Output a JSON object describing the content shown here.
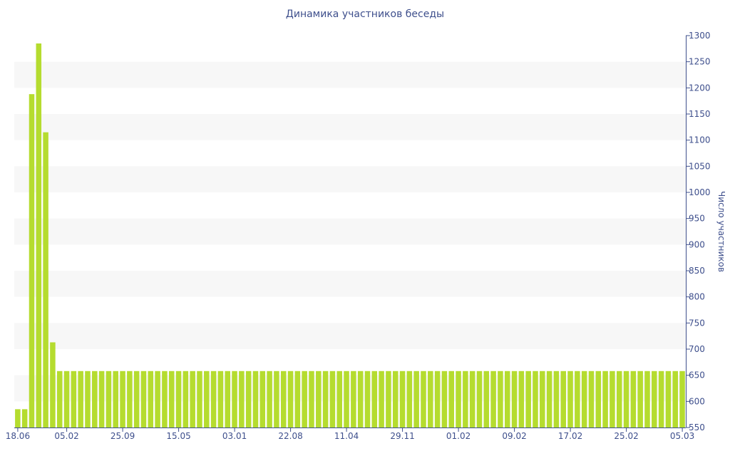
{
  "chart_data": {
    "type": "bar",
    "title": "Динамика участников беседы",
    "xlabel": "",
    "ylabel": "Число участников",
    "ylim": [
      550,
      1300
    ],
    "y_ticks": [
      550,
      600,
      650,
      700,
      750,
      800,
      850,
      900,
      950,
      1000,
      1050,
      1100,
      1150,
      1200,
      1250,
      1300
    ],
    "y_axis_position": "right",
    "x_tick_labels": [
      "18.06",
      "05.02",
      "25.09",
      "15.05",
      "03.01",
      "22.08",
      "11.04",
      "29.11",
      "01.02",
      "09.02",
      "17.02",
      "25.02",
      "05.03"
    ],
    "x_tick_bar_index": [
      0,
      7,
      15,
      23,
      31,
      39,
      47,
      55,
      63,
      71,
      79,
      87,
      95
    ],
    "grid": "horizontal bands",
    "colors": {
      "bar": "#b5dc2f",
      "band": "#f7f7f7",
      "axis": "#3e4f8c",
      "text": "#3e4f8c"
    },
    "values": [
      585,
      585,
      1188,
      1285,
      1115,
      713,
      658,
      658,
      658,
      658,
      658,
      658,
      658,
      658,
      658,
      658,
      658,
      658,
      658,
      658,
      658,
      658,
      658,
      658,
      658,
      658,
      658,
      658,
      658,
      658,
      658,
      658,
      658,
      658,
      658,
      658,
      658,
      658,
      658,
      658,
      658,
      658,
      658,
      658,
      658,
      658,
      658,
      658,
      658,
      658,
      658,
      658,
      658,
      658,
      658,
      658,
      658,
      658,
      658,
      658,
      658,
      658,
      658,
      658,
      658,
      658,
      658,
      658,
      658,
      658,
      658,
      658,
      658,
      658,
      658,
      658,
      658,
      658,
      658,
      658,
      658,
      658,
      658,
      658,
      658,
      658,
      658,
      658,
      658,
      658,
      658,
      658,
      658,
      658,
      658,
      658
    ]
  }
}
